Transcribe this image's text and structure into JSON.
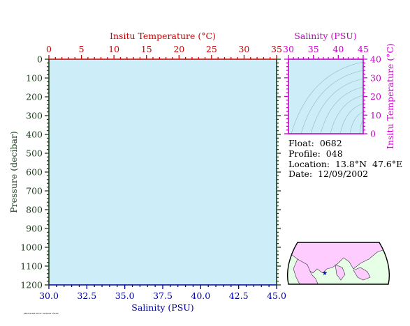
{
  "chart_data": [
    {
      "type": "line",
      "panel": "main-profile",
      "top_axis": {
        "label": "Insitu Temperature (°C)",
        "range": [
          0,
          35
        ],
        "ticks": [
          "0",
          "5",
          "10",
          "15",
          "20",
          "25",
          "30",
          "35"
        ],
        "color": "#cc0000"
      },
      "bottom_axis": {
        "label": "Salinity (PSU)",
        "range": [
          30.0,
          45.0
        ],
        "ticks": [
          "30.0",
          "32.5",
          "35.0",
          "37.5",
          "40.0",
          "42.5",
          "45.0"
        ],
        "color": "#000099"
      },
      "left_axis": {
        "label": "Pressure (decibar)",
        "range": [
          0,
          1200
        ],
        "inverted": true,
        "ticks": [
          "0",
          "100",
          "200",
          "300",
          "400",
          "500",
          "600",
          "700",
          "800",
          "900",
          "1000",
          "1100",
          "1200"
        ],
        "color": "#1a3a1a"
      },
      "series": [
        {
          "values": [],
          "color": "#cc0000"
        },
        {
          "values": [],
          "color": "#000099"
        }
      ],
      "background": "#cdeef8",
      "grid": false
    },
    {
      "type": "scatter",
      "panel": "ts-diagram",
      "top_axis": {
        "label": "Salinity (PSU)",
        "range": [
          30,
          45
        ],
        "ticks": [
          "30",
          "35",
          "40",
          "45"
        ],
        "color": "#cc00cc"
      },
      "right_axis": {
        "label": "Insitu Temperature (°C)",
        "range": [
          0,
          40
        ],
        "ticks": [
          "0",
          "10",
          "20",
          "30",
          "40"
        ],
        "color": "#cc00cc"
      },
      "series": [],
      "background": "#cdeef8",
      "density_contours": true
    }
  ],
  "info": {
    "float": "Float:  0682",
    "profile": "Profile:  048",
    "location": "Location:  13.8°N  47.6°E",
    "date": "Date:  12/09/2002"
  },
  "map": {
    "marker": {
      "lat": 13.8,
      "lon": 47.6
    },
    "land_color": "#ffccff",
    "ocean_color": "#e6ffe6",
    "marker_color": "#0000cc"
  },
  "footer_note": "PROFILER PLOT 02/2003 NOAA"
}
